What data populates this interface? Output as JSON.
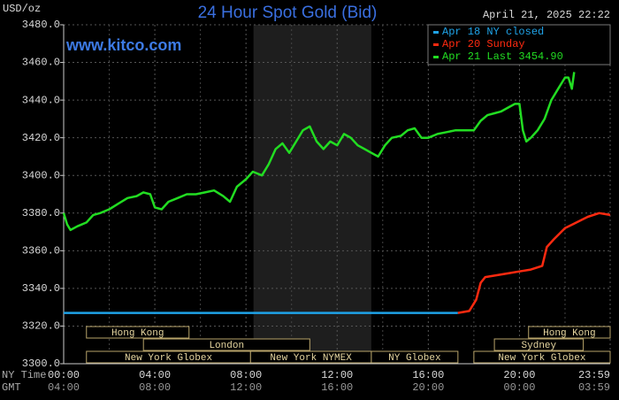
{
  "chart_data": {
    "type": "line",
    "title": "24 Hour Spot Gold (Bid)",
    "site": "www.kitco.com",
    "unit": "USD/oz",
    "timestamp": "April 21, 2025 22:22",
    "row_labels": [
      "NY Time",
      "GMT"
    ],
    "xlim": [
      0,
      23.98
    ],
    "ylim": [
      3300,
      3480
    ],
    "yticks": [
      {
        "value": 3300,
        "label": "3300.0"
      },
      {
        "value": 3320,
        "label": "3320.0"
      },
      {
        "value": 3340,
        "label": "3340.0"
      },
      {
        "value": 3360,
        "label": "3360.0"
      },
      {
        "value": 3380,
        "label": "3380.0"
      },
      {
        "value": 3400,
        "label": "3400.0"
      },
      {
        "value": 3420,
        "label": "3420.0"
      },
      {
        "value": 3440,
        "label": "3440.0"
      },
      {
        "value": 3460,
        "label": "3460.0"
      },
      {
        "value": 3480,
        "label": "3480.0"
      }
    ],
    "xticks": [
      {
        "value": 0,
        "label": "00:00"
      },
      {
        "value": 4,
        "label": "04:00"
      },
      {
        "value": 8,
        "label": "08:00"
      },
      {
        "value": 12,
        "label": "12:00"
      },
      {
        "value": 16,
        "label": "16:00"
      },
      {
        "value": 20,
        "label": "20:00"
      },
      {
        "value": 23.98,
        "label": "23:59"
      }
    ],
    "gmt_ticks": [
      {
        "value": 0,
        "label": "04:00"
      },
      {
        "value": 4,
        "label": "08:00"
      },
      {
        "value": 8,
        "label": "12:00"
      },
      {
        "value": 12,
        "label": "16:00"
      },
      {
        "value": 16,
        "label": "20:00"
      },
      {
        "value": 20,
        "label": "00:00"
      },
      {
        "value": 23.98,
        "label": "03:59"
      }
    ],
    "x_minor_grid": [
      2,
      6,
      10,
      14,
      18,
      22
    ],
    "grid": true,
    "shaded_range": [
      8.33,
      13.5
    ],
    "legend": "top-right",
    "series": [
      {
        "name": "Apr 18 NY closed",
        "color": "#1fa3e8",
        "x": [
          0,
          17.3
        ],
        "values": [
          3327,
          3327
        ]
      },
      {
        "name": "Apr 20 Sunday",
        "color": "#ff2a10",
        "x": [
          17.3,
          17.8,
          18.1,
          18.3,
          18.5,
          19,
          19.5,
          20,
          20.5,
          21,
          21.2,
          21.5,
          22,
          22.5,
          23,
          23.5,
          23.98
        ],
        "values": [
          3327,
          3328,
          3334,
          3343,
          3346,
          3347,
          3348,
          3349,
          3350,
          3352,
          3362,
          3366,
          3372,
          3375,
          3378,
          3380,
          3379
        ]
      },
      {
        "name": "Apr 21 Last 3454.90",
        "color": "#22dd22",
        "x": [
          0,
          0.15,
          0.3,
          0.6,
          1,
          1.3,
          1.6,
          2,
          2.4,
          2.8,
          3.2,
          3.5,
          3.8,
          4,
          4.3,
          4.6,
          5,
          5.4,
          5.8,
          6.2,
          6.6,
          7,
          7.3,
          7.6,
          8,
          8.3,
          8.7,
          9,
          9.3,
          9.6,
          9.9,
          10.2,
          10.5,
          10.8,
          11.1,
          11.4,
          11.7,
          12,
          12.3,
          12.6,
          12.9,
          13.2,
          13.5,
          13.8,
          14.1,
          14.4,
          14.8,
          15.1,
          15.4,
          15.7,
          16,
          16.4,
          16.8,
          17.2,
          17.6,
          18,
          18.3,
          18.6,
          18.9,
          19.2,
          19.5,
          19.8,
          20,
          20.15,
          20.3,
          20.5,
          20.8,
          21.1,
          21.4,
          21.7,
          22,
          22.15,
          22.3,
          22.4
        ],
        "values": [
          3380,
          3374,
          3371,
          3373,
          3375,
          3379,
          3380,
          3382,
          3385,
          3388,
          3389,
          3391,
          3390,
          3383,
          3382,
          3386,
          3388,
          3390,
          3390,
          3391,
          3392,
          3389,
          3386,
          3394,
          3398,
          3402,
          3400,
          3406,
          3414,
          3417,
          3412,
          3418,
          3424,
          3426,
          3418,
          3414,
          3418,
          3416,
          3422,
          3420,
          3416,
          3414,
          3412,
          3410,
          3416,
          3420,
          3421,
          3424,
          3425,
          3420,
          3420,
          3422,
          3423,
          3424,
          3424,
          3424,
          3429,
          3432,
          3433,
          3434,
          3436,
          3438,
          3438,
          3424,
          3418,
          3420,
          3424,
          3430,
          3440,
          3446,
          3452,
          3452,
          3446,
          3454.9
        ]
      }
    ],
    "sessions": [
      {
        "label": "Hong Kong",
        "start": 1,
        "end": 5.5,
        "row": 0
      },
      {
        "label": "London",
        "start": 3.5,
        "end": 10.8,
        "row": 1
      },
      {
        "label": "New York Globex",
        "start": 1,
        "end": 8.2,
        "row": 2
      },
      {
        "label": "New York NYMEX",
        "start": 8.2,
        "end": 13.5,
        "row": 2
      },
      {
        "label": "NY Globex",
        "start": 13.5,
        "end": 17.3,
        "row": 2
      },
      {
        "label": "Hong Kong",
        "start": 20.4,
        "end": 23.98,
        "row": 0
      },
      {
        "label": "Sydney",
        "start": 18.9,
        "end": 22.8,
        "row": 1
      },
      {
        "label": "New York Globex",
        "start": 18,
        "end": 23.98,
        "row": 2
      }
    ]
  }
}
